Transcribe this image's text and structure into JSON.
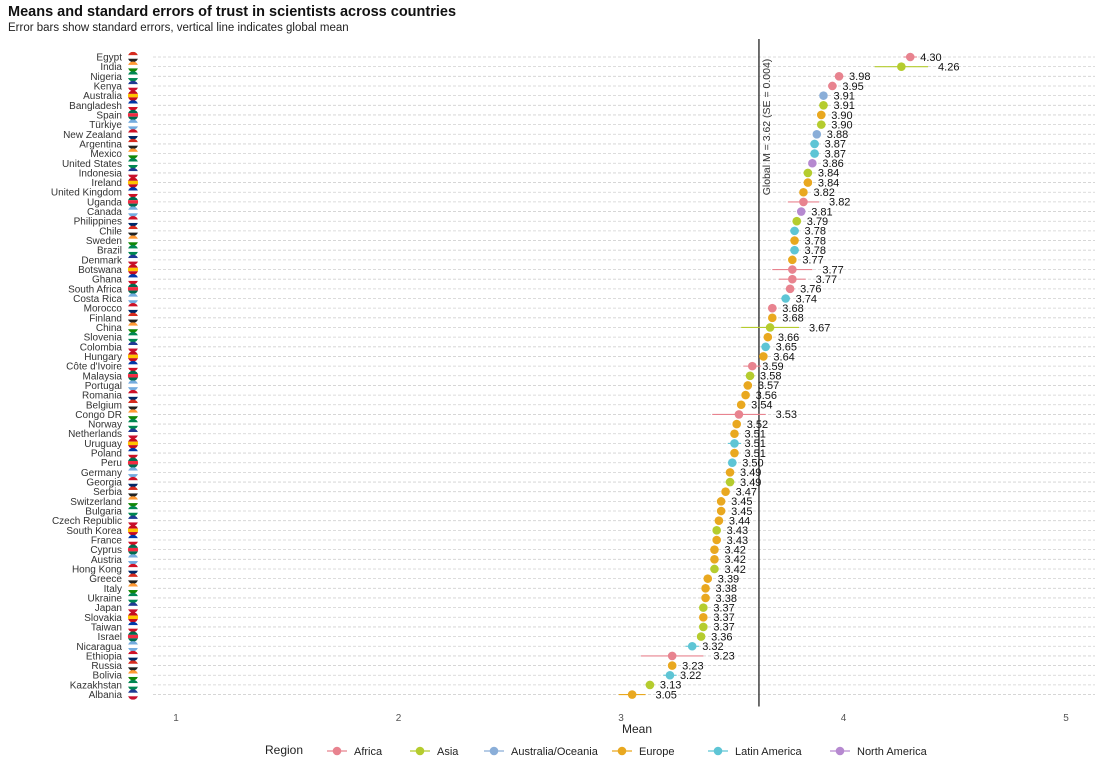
{
  "chart_data": {
    "type": "scatter",
    "title": "Means and standard errors of trust in scientists across countries",
    "subtitle": "Error bars show standard errors, vertical line indicates global mean",
    "xlabel": "Mean",
    "ylabel": "",
    "xlim": [
      0.6,
      5.15
    ],
    "xticks": [
      "1",
      "2",
      "3",
      "4",
      "5"
    ],
    "grid": "horizontal dashed",
    "legend_title": "Region",
    "legend_position": "bottom",
    "regions": [
      {
        "name": "Africa",
        "color": "#e8838f"
      },
      {
        "name": "Asia",
        "color": "#b5cc2e"
      },
      {
        "name": "Australia/Oceania",
        "color": "#8aaed8"
      },
      {
        "name": "Europe",
        "color": "#e9a81f"
      },
      {
        "name": "Latin America",
        "color": "#5ec5d5"
      },
      {
        "name": "North America",
        "color": "#b689d0"
      }
    ],
    "global_mean": 3.62,
    "global_mean_label": "Global M = 3.62 (SE = 0.004)",
    "countries": [
      {
        "name": "Egypt",
        "mean": 4.3,
        "label": "4.30",
        "se": 0.03,
        "region": "Africa"
      },
      {
        "name": "India",
        "mean": 4.26,
        "label": "4.26",
        "se": 0.12,
        "region": "Asia"
      },
      {
        "name": "Nigeria",
        "mean": 3.98,
        "label": "3.98",
        "se": 0.02,
        "region": "Africa"
      },
      {
        "name": "Kenya",
        "mean": 3.95,
        "label": "3.95",
        "se": 0.02,
        "region": "Africa"
      },
      {
        "name": "Australia",
        "mean": 3.91,
        "label": "3.91",
        "se": 0.01,
        "region": "Australia/Oceania"
      },
      {
        "name": "Bangladesh",
        "mean": 3.91,
        "label": "3.91",
        "se": 0.02,
        "region": "Asia"
      },
      {
        "name": "Spain",
        "mean": 3.9,
        "label": "3.90",
        "se": 0.01,
        "region": "Europe"
      },
      {
        "name": "Türkiye",
        "mean": 3.9,
        "label": "3.90",
        "se": 0.02,
        "region": "Asia"
      },
      {
        "name": "New Zealand",
        "mean": 3.88,
        "label": "3.88",
        "se": 0.01,
        "region": "Australia/Oceania"
      },
      {
        "name": "Argentina",
        "mean": 3.87,
        "label": "3.87",
        "se": 0.02,
        "region": "Latin America"
      },
      {
        "name": "Mexico",
        "mean": 3.87,
        "label": "3.87",
        "se": 0.02,
        "region": "Latin America"
      },
      {
        "name": "United States",
        "mean": 3.86,
        "label": "3.86",
        "se": 0.01,
        "region": "North America"
      },
      {
        "name": "Indonesia",
        "mean": 3.84,
        "label": "3.84",
        "se": 0.02,
        "region": "Asia"
      },
      {
        "name": "Ireland",
        "mean": 3.84,
        "label": "3.84",
        "se": 0.01,
        "region": "Europe"
      },
      {
        "name": "United Kingdom",
        "mean": 3.82,
        "label": "3.82",
        "se": 0.01,
        "region": "Europe"
      },
      {
        "name": "Uganda",
        "mean": 3.82,
        "label": "3.82",
        "se": 0.07,
        "region": "Africa"
      },
      {
        "name": "Canada",
        "mean": 3.81,
        "label": "3.81",
        "se": 0.01,
        "region": "North America"
      },
      {
        "name": "Philippines",
        "mean": 3.79,
        "label": "3.79",
        "se": 0.02,
        "region": "Asia"
      },
      {
        "name": "Chile",
        "mean": 3.78,
        "label": "3.78",
        "se": 0.02,
        "region": "Latin America"
      },
      {
        "name": "Sweden",
        "mean": 3.78,
        "label": "3.78",
        "se": 0.01,
        "region": "Europe"
      },
      {
        "name": "Brazil",
        "mean": 3.78,
        "label": "3.78",
        "se": 0.02,
        "region": "Latin America"
      },
      {
        "name": "Denmark",
        "mean": 3.77,
        "label": "3.77",
        "se": 0.01,
        "region": "Europe"
      },
      {
        "name": "Botswana",
        "mean": 3.77,
        "label": "3.77",
        "se": 0.09,
        "region": "Africa"
      },
      {
        "name": "Ghana",
        "mean": 3.77,
        "label": "3.77",
        "se": 0.06,
        "region": "Africa"
      },
      {
        "name": "South Africa",
        "mean": 3.76,
        "label": "3.76",
        "se": 0.02,
        "region": "Africa"
      },
      {
        "name": "Costa Rica",
        "mean": 3.74,
        "label": "3.74",
        "se": 0.02,
        "region": "Latin America"
      },
      {
        "name": "Morocco",
        "mean": 3.68,
        "label": "3.68",
        "se": 0.02,
        "region": "Africa"
      },
      {
        "name": "Finland",
        "mean": 3.68,
        "label": "3.68",
        "se": 0.01,
        "region": "Europe"
      },
      {
        "name": "China",
        "mean": 3.67,
        "label": "3.67",
        "se": 0.13,
        "region": "Asia"
      },
      {
        "name": "Slovenia",
        "mean": 3.66,
        "label": "3.66",
        "se": 0.01,
        "region": "Europe"
      },
      {
        "name": "Colombia",
        "mean": 3.65,
        "label": "3.65",
        "se": 0.02,
        "region": "Latin America"
      },
      {
        "name": "Hungary",
        "mean": 3.64,
        "label": "3.64",
        "se": 0.01,
        "region": "Europe"
      },
      {
        "name": "Côte d'Ivoire",
        "mean": 3.59,
        "label": "3.59",
        "se": 0.04,
        "region": "Africa"
      },
      {
        "name": "Malaysia",
        "mean": 3.58,
        "label": "3.58",
        "se": 0.02,
        "region": "Asia"
      },
      {
        "name": "Portugal",
        "mean": 3.57,
        "label": "3.57",
        "se": 0.01,
        "region": "Europe"
      },
      {
        "name": "Romania",
        "mean": 3.56,
        "label": "3.56",
        "se": 0.01,
        "region": "Europe"
      },
      {
        "name": "Belgium",
        "mean": 3.54,
        "label": "3.54",
        "se": 0.01,
        "region": "Europe"
      },
      {
        "name": "Congo DR",
        "mean": 3.53,
        "label": "3.53",
        "se": 0.12,
        "region": "Africa"
      },
      {
        "name": "Norway",
        "mean": 3.52,
        "label": "3.52",
        "se": 0.01,
        "region": "Europe"
      },
      {
        "name": "Netherlands",
        "mean": 3.51,
        "label": "3.51",
        "se": 0.01,
        "region": "Europe"
      },
      {
        "name": "Uruguay",
        "mean": 3.51,
        "label": "3.51",
        "se": 0.03,
        "region": "Latin America"
      },
      {
        "name": "Poland",
        "mean": 3.51,
        "label": "3.51",
        "se": 0.01,
        "region": "Europe"
      },
      {
        "name": "Peru",
        "mean": 3.5,
        "label": "3.50",
        "se": 0.02,
        "region": "Latin America"
      },
      {
        "name": "Germany",
        "mean": 3.49,
        "label": "3.49",
        "se": 0.01,
        "region": "Europe"
      },
      {
        "name": "Georgia",
        "mean": 3.49,
        "label": "3.49",
        "se": 0.02,
        "region": "Asia"
      },
      {
        "name": "Serbia",
        "mean": 3.47,
        "label": "3.47",
        "se": 0.01,
        "region": "Europe"
      },
      {
        "name": "Switzerland",
        "mean": 3.45,
        "label": "3.45",
        "se": 0.01,
        "region": "Europe"
      },
      {
        "name": "Bulgaria",
        "mean": 3.45,
        "label": "3.45",
        "se": 0.01,
        "region": "Europe"
      },
      {
        "name": "Czech Republic",
        "mean": 3.44,
        "label": "3.44",
        "se": 0.01,
        "region": "Europe"
      },
      {
        "name": "South Korea",
        "mean": 3.43,
        "label": "3.43",
        "se": 0.01,
        "region": "Asia"
      },
      {
        "name": "France",
        "mean": 3.43,
        "label": "3.43",
        "se": 0.01,
        "region": "Europe"
      },
      {
        "name": "Cyprus",
        "mean": 3.42,
        "label": "3.42",
        "se": 0.01,
        "region": "Europe"
      },
      {
        "name": "Austria",
        "mean": 3.42,
        "label": "3.42",
        "se": 0.01,
        "region": "Europe"
      },
      {
        "name": "Hong Kong",
        "mean": 3.42,
        "label": "3.42",
        "se": 0.01,
        "region": "Asia"
      },
      {
        "name": "Greece",
        "mean": 3.39,
        "label": "3.39",
        "se": 0.01,
        "region": "Europe"
      },
      {
        "name": "Italy",
        "mean": 3.38,
        "label": "3.38",
        "se": 0.01,
        "region": "Europe"
      },
      {
        "name": "Ukraine",
        "mean": 3.38,
        "label": "3.38",
        "se": 0.01,
        "region": "Europe"
      },
      {
        "name": "Japan",
        "mean": 3.37,
        "label": "3.37",
        "se": 0.01,
        "region": "Asia"
      },
      {
        "name": "Slovakia",
        "mean": 3.37,
        "label": "3.37",
        "se": 0.01,
        "region": "Europe"
      },
      {
        "name": "Taiwan",
        "mean": 3.37,
        "label": "3.37",
        "se": 0.01,
        "region": "Asia"
      },
      {
        "name": "Israel",
        "mean": 3.36,
        "label": "3.36",
        "se": 0.01,
        "region": "Asia"
      },
      {
        "name": "Nicaragua",
        "mean": 3.32,
        "label": "3.32",
        "se": 0.03,
        "region": "Latin America"
      },
      {
        "name": "Ethiopia",
        "mean": 3.23,
        "label": "3.23",
        "se": 0.14,
        "region": "Africa"
      },
      {
        "name": "Russia",
        "mean": 3.23,
        "label": "3.23",
        "se": 0.01,
        "region": "Europe"
      },
      {
        "name": "Bolivia",
        "mean": 3.22,
        "label": "3.22",
        "se": 0.03,
        "region": "Latin America"
      },
      {
        "name": "Kazakhstan",
        "mean": 3.13,
        "label": "3.13",
        "se": 0.02,
        "region": "Asia"
      },
      {
        "name": "Albania",
        "mean": 3.05,
        "label": "3.05",
        "se": 0.06,
        "region": "Europe"
      }
    ]
  }
}
